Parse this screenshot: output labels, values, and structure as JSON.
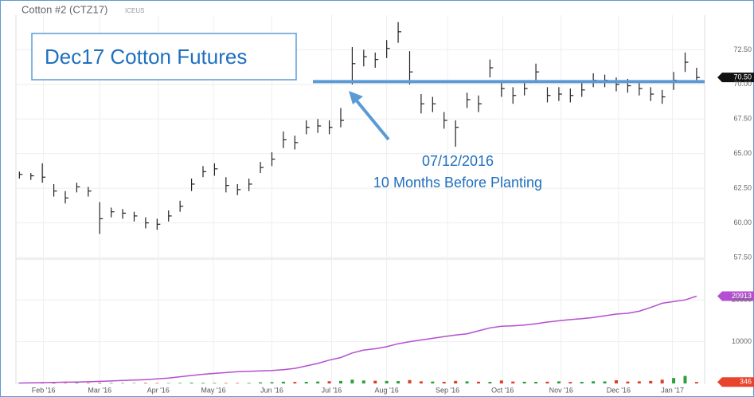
{
  "chart_data": {
    "type": "ohlc",
    "title": "Cotton #2 (CTZ17)",
    "subtitle": "ICEUS",
    "annotations": [
      "Dec17 Cotton Futures",
      "07/12/2016",
      "10 Months Before Planting"
    ],
    "xlim": [
      -0.3,
      59.7
    ],
    "xticks": [
      {
        "value": 2.1,
        "label": "Feb '16"
      },
      {
        "value": 7.0,
        "label": "Mar '16"
      },
      {
        "value": 12.1,
        "label": "Apr '16"
      },
      {
        "value": 16.9,
        "label": "May '16"
      },
      {
        "value": 22.0,
        "label": "Jun '16"
      },
      {
        "value": 27.2,
        "label": "Jul '16"
      },
      {
        "value": 32.0,
        "label": "Aug '16"
      },
      {
        "value": 37.3,
        "label": "Sep '16"
      },
      {
        "value": 42.1,
        "label": "Oct '16"
      },
      {
        "value": 47.2,
        "label": "Nov '16"
      },
      {
        "value": 52.2,
        "label": "Dec '16"
      },
      {
        "value": 56.9,
        "label": "Jan '17"
      }
    ],
    "ylim": [
      57.5,
      75
    ],
    "yticks": [
      {
        "value": 57.5,
        "label": "57.50"
      },
      {
        "value": 60,
        "label": "60.00"
      },
      {
        "value": 62.5,
        "label": "62.50"
      },
      {
        "value": 65,
        "label": "65.00"
      },
      {
        "value": 67.5,
        "label": "67.50"
      },
      {
        "value": 70,
        "label": "70.00"
      },
      {
        "value": 72.5,
        "label": "72.50"
      }
    ],
    "y2lim": [
      0,
      29400
    ],
    "y2ticks": [
      10000,
      20000
    ],
    "grid": true,
    "color": "#222222",
    "high": [
      63.7,
      63.6,
      64.3,
      62.8,
      62.3,
      62.9,
      62.6,
      61.5,
      61.1,
      61.0,
      60.8,
      60.4,
      60.3,
      60.9,
      61.6,
      63.2,
      64.1,
      64.3,
      63.3,
      62.8,
      63.2,
      64.4,
      65.1,
      66.6,
      66.3,
      67.4,
      67.5,
      67.4,
      68.3,
      72.7,
      72.5,
      72.3,
      73.2,
      74.5,
      72.4,
      69.3,
      69.1,
      68.0,
      67.4,
      69.4,
      69.2,
      71.8,
      70.3,
      69.8,
      70.2,
      71.5,
      69.8,
      69.8,
      69.7,
      70.1,
      70.8,
      70.7,
      70.5,
      70.4,
      70.2,
      69.8,
      69.6,
      70.9,
      72.3,
      71.2
    ],
    "low": [
      63.2,
      63.1,
      62.9,
      61.9,
      61.4,
      62.2,
      61.9,
      59.2,
      60.4,
      60.3,
      60.1,
      59.6,
      59.5,
      60.1,
      60.8,
      62.3,
      63.3,
      63.4,
      62.2,
      62.0,
      62.3,
      63.6,
      64.1,
      65.4,
      65.3,
      66.4,
      66.5,
      66.4,
      66.9,
      70.0,
      71.3,
      71.2,
      71.9,
      73.0,
      70.0,
      67.9,
      68.0,
      66.8,
      65.5,
      68.3,
      68.0,
      70.5,
      69.1,
      68.6,
      69.2,
      70.2,
      68.7,
      68.8,
      68.7,
      69.1,
      69.8,
      69.8,
      69.5,
      69.4,
      69.2,
      68.8,
      68.6,
      69.6,
      70.9,
      70.2
    ],
    "close": [
      63.5,
      63.4,
      63.3,
      62.3,
      61.8,
      62.6,
      62.3,
      60.3,
      60.8,
      60.7,
      60.5,
      60.0,
      59.9,
      60.5,
      61.2,
      62.8,
      63.7,
      63.9,
      62.7,
      62.4,
      62.8,
      64.0,
      64.6,
      66.0,
      65.8,
      66.9,
      67.0,
      66.9,
      67.4,
      71.5,
      72.0,
      71.8,
      72.6,
      73.8,
      70.9,
      68.6,
      68.6,
      67.4,
      66.9,
      68.9,
      68.6,
      71.2,
      69.7,
      69.2,
      69.7,
      70.9,
      69.2,
      69.3,
      69.2,
      69.6,
      70.3,
      70.3,
      70.0,
      69.9,
      69.7,
      69.3,
      69.1,
      70.3,
      71.6,
      70.5
    ],
    "open_interest": {
      "color": "#b44fd0",
      "axis": "y2",
      "values": [
        100,
        150,
        200,
        250,
        300,
        350,
        400,
        500,
        600,
        700,
        800,
        900,
        1100,
        1300,
        1600,
        1900,
        2200,
        2400,
        2600,
        2800,
        2900,
        3000,
        3100,
        3300,
        3600,
        4200,
        4800,
        5600,
        6200,
        7300,
        8000,
        8300,
        8800,
        9500,
        10000,
        10400,
        10800,
        11200,
        11600,
        11900,
        12600,
        13300,
        13700,
        13800,
        14000,
        14300,
        14700,
        15000,
        15300,
        15500,
        15800,
        16200,
        16600,
        16800,
        17300,
        18200,
        19200,
        19600,
        20000,
        20913
      ]
    },
    "volume": {
      "up_color": "#2e9e3e",
      "down_color": "#d9402b",
      "axis": "y2",
      "values": [
        120,
        80,
        150,
        100,
        90,
        130,
        110,
        160,
        120,
        100,
        90,
        140,
        110,
        100,
        120,
        180,
        150,
        130,
        110,
        120,
        140,
        260,
        300,
        420,
        350,
        380,
        450,
        520,
        600,
        900,
        700,
        650,
        600,
        560,
        800,
        500,
        450,
        380,
        600,
        500,
        420,
        380,
        700,
        450,
        400,
        380,
        420,
        500,
        350,
        380,
        520,
        480,
        760,
        450,
        500,
        600,
        900,
        1300,
        1800,
        346
      ]
    },
    "hline": 70.2,
    "tags": [
      {
        "value": 70.5,
        "label": "70.50",
        "axis": "y",
        "color": "#111111"
      },
      {
        "value": 20913,
        "label": "20913",
        "axis": "y2",
        "color": "#b44fd0"
      },
      {
        "value": 346,
        "label": "346",
        "axis": "y2",
        "color": "#e8432c"
      }
    ]
  }
}
